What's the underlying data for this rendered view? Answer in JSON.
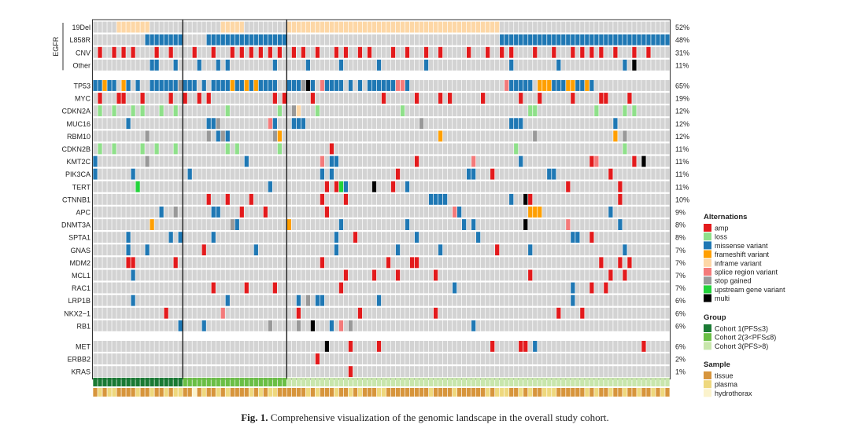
{
  "chart_data": {
    "type": "heatmap",
    "subtype": "oncoprint",
    "sample_count": 122,
    "cohort_sizes": [
      19,
      22,
      81
    ],
    "colors": {
      "background": "#d3d3d3",
      "amp": "#e31a1c",
      "loss": "#8fe08a",
      "missense variant": "#1f78b4",
      "frameshift variant": "#ff9f00",
      "inframe variant": "#fdd7a6",
      "splice region variant": "#f47a7a",
      "stop gained": "#999999",
      "upstream gene variant": "#22d33a",
      "multi": "#000000",
      "Cohort 1(PFS≤3)": "#1a7a34",
      "Cohort 2(3<PFS≤8)": "#6abf45",
      "Cohort 3(PFS>8)": "#c8e6ac",
      "tissue": "#d7953c",
      "plasma": "#eed87e",
      "hydrothorax": "#fbf3cc"
    },
    "egfr_label": "EGFR",
    "legend_alterations": {
      "title": "Alternations",
      "items": [
        "amp",
        "loss",
        "missense variant",
        "frameshift variant",
        "inframe variant",
        "splice region variant",
        "stop gained",
        "upstream gene variant",
        "multi"
      ]
    },
    "legend_group": {
      "title": "Group",
      "items": [
        "Cohort 1(PFS≤3)",
        "Cohort 2(3<PFS≤8)",
        "Cohort 3(PFS>8)"
      ]
    },
    "legend_sample": {
      "title": "Sample",
      "items": [
        "tissue",
        "plasma",
        "hydrothorax"
      ]
    },
    "sample_types": "tptppttttpttpttptpptthtpttptpttttptptppttttttptptttpttptptttpptttttttttpttttpttttttptpppttptpttpppttttttptpttpttpttpttptpttt",
    "rows": [
      {
        "gene": "19Del",
        "pct": "52%",
        "block": 0,
        "alt": "5:11:I,27:31:I,41:85:I"
      },
      {
        "gene": "L858R",
        "pct": "48%",
        "block": 0,
        "alt": "11:18:M,24:40:M,86:121:M"
      },
      {
        "gene": "CNV",
        "pct": "31%",
        "block": 0,
        "alt": "1A,4A,6A,8A,13A,16A,21A,25A,29A,31A,33A,35A,37A,39A,42A,44A,47A,51A,53A,56A,58A,63A,66A,70A,73A,79A,83A,86A,88A,93A,97A,101A,103A,105A,107A,110A,114A,117A"
      },
      {
        "gene": "Other",
        "pct": "11%",
        "block": 0,
        "alt": "12M,13M,17M,22M,26M,28M,38M,45M,52M,60M,70M,88M,98M,112M,114K"
      },
      {
        "gene": "TP53",
        "pct": "65%",
        "block": 1,
        "alt": "0M,1M,2F,3M,4M,6F,7M,9M,12:17:M,18G,19M,20M,21M,23M,25M,26M,27M,28M,29F,30M,31M,32F,33M,34F,35M,36M,37M,38M,41M,42M,43M,44G,45K,46M,48S,49M,50M,51M,52M,54M,56M,58M,59M,60M,61M,62M,63M,64S,65S,66M,87S,88M,89M,90M,91M,92M,94F,95F,96F,97M,98M,99M,100F,101F,102M,103M,104F,105M"
      },
      {
        "gene": "MYC",
        "pct": "19%",
        "block": 1,
        "alt": "1A,5A,6A,10A,16A,19A,22A,24A,38A,40A,46A,61A,68A,73A,75A,82A,90A,94A,101A,107A,108A,113A"
      },
      {
        "gene": "CDKN2A",
        "pct": "12%",
        "block": 1,
        "alt": "1L,4L,8L,10L,14L,17L,28L,39L,42G,43I,47L,65L,92L,93L,106L,112L,114L"
      },
      {
        "gene": "MUC16",
        "pct": "12%",
        "block": 1,
        "alt": "7M,24M,25M,26G,37S,38M,42M,43M,44M,69G,88M,89M,90M,110M"
      },
      {
        "gene": "RBM10",
        "pct": "12%",
        "block": 1,
        "alt": "11G,24G,26M,27G,28M,38G,39F,73F,93G,110F,112G"
      },
      {
        "gene": "CDKN2B",
        "pct": "11%",
        "block": 1,
        "alt": "1L,4L,10L,13L,17L,28L,30L,39L,50A,89L,112L"
      },
      {
        "gene": "KMT2C",
        "pct": "11%",
        "block": 1,
        "alt": "0M,11G,32M,48S,50M,51M,68A,80S,90M,105A,106S,114A,116K"
      },
      {
        "gene": "PIK3CA",
        "pct": "11%",
        "block": 1,
        "alt": "0M,8M,20M,48M,50M,64A,79M,80M,84A,96M,97M,109A"
      },
      {
        "gene": "TERT",
        "pct": "11%",
        "block": 1,
        "alt": "9U,37M,49A,51A,52U,53M,59K,63A,66M,100A,111A"
      },
      {
        "gene": "CTNNB1",
        "pct": "10%",
        "block": 1,
        "alt": "24A,28A,33A,48A,53A,71M,72M,73M,74M,88M,91K,92A,111A"
      },
      {
        "gene": "APC",
        "pct": "9%",
        "block": 1,
        "alt": "14M,17G,25M,26M,31A,36A,49A,76S,77M,92F,93F,94F,109M"
      },
      {
        "gene": "DNMT3A",
        "pct": "8%",
        "block": 1,
        "alt": "12F,29G,30M,41F,52M,66M,78M,80M,91K,100S,111M"
      },
      {
        "gene": "SPTA1",
        "pct": "8%",
        "block": 1,
        "alt": "7M,16M,18M,25M,51M,55A,68M,81M,101M,102M,105A"
      },
      {
        "gene": "GNAS",
        "pct": "7%",
        "block": 1,
        "alt": "7M,11M,23A,34M,51M,64M,73M,85A,92M,112M"
      },
      {
        "gene": "MDM2",
        "pct": "7%",
        "block": 1,
        "alt": "7A,8A,17A,48A,62A,67A,68A,107A,111A,113A"
      },
      {
        "gene": "MCL1",
        "pct": "7%",
        "block": 1,
        "alt": "8M,53A,59A,64A,72A,92A,109A,112A"
      },
      {
        "gene": "RAC1",
        "pct": "7%",
        "block": 1,
        "alt": "25A,32A,38A,52A,76M,101M,105A,108A"
      },
      {
        "gene": "LRP1B",
        "pct": "6%",
        "block": 1,
        "alt": "8M,28M,43M,45G,47M,48M,60M,101M"
      },
      {
        "gene": "NKX2−1",
        "pct": "6%",
        "block": 1,
        "alt": "15A,27S,43A,56A,72A,98A,103A"
      },
      {
        "gene": "RB1",
        "pct": "6%",
        "block": 1,
        "alt": "18M,23M,37G,43G,46K,50M,52S,54G,80M"
      },
      {
        "gene": "MET",
        "pct": "6%",
        "block": 2,
        "alt": "49K,54A,60A,84A,90A,91A,93M,116A"
      },
      {
        "gene": "ERBB2",
        "pct": "2%",
        "block": 2,
        "alt": "47A"
      },
      {
        "gene": "KRAS",
        "pct": "1%",
        "block": 2,
        "alt": "54A"
      }
    ]
  },
  "caption": {
    "label": "Fig. 1.",
    "text": "Comprehensive visualization of the genomic landscape in the overall study cohort."
  }
}
